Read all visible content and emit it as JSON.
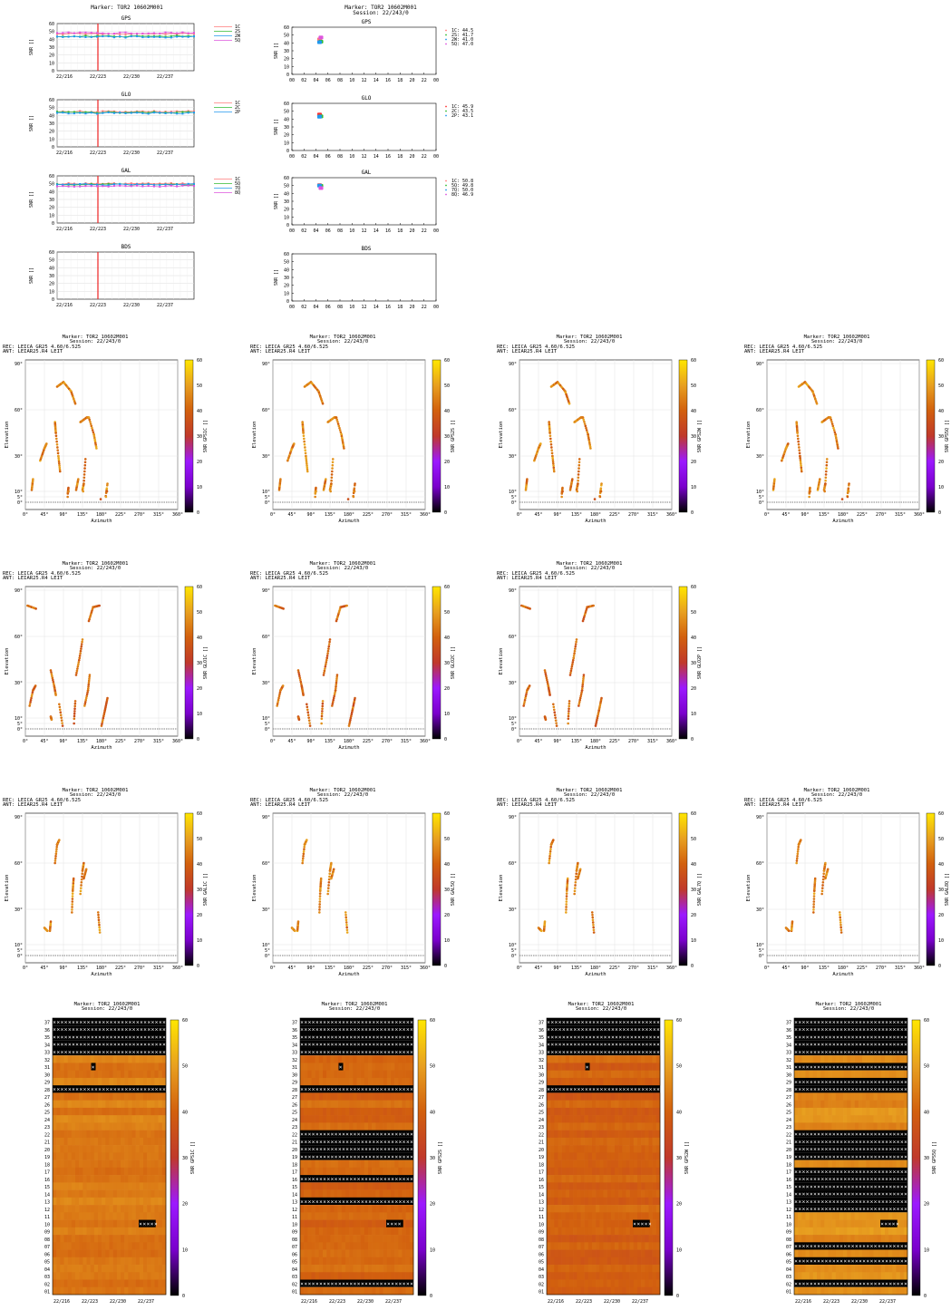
{
  "marker": "Marker: TOR2 10602M001",
  "session": "Session: 22/243/0",
  "receiver": "REC: LEICA GR25          4.60/6.525",
  "antenna": "ANT: LEIAR25.R4       LEIT",
  "colors": {
    "snr_scale": [
      "#000000",
      "#7a00cc",
      "#9c19ff",
      "#c0392b",
      "#d2600e",
      "#e8a020",
      "#ffe600"
    ],
    "cycle_marker": "#ee2222",
    "gap_fill": "#000000"
  },
  "time_series": {
    "ylabel": "SNR []",
    "x_ticks": [
      "22/216",
      "22/223",
      "22/230",
      "22/237"
    ],
    "y_ticks": [
      "0",
      "10",
      "20",
      "30",
      "40",
      "50",
      "60"
    ],
    "ylim": [
      0,
      60
    ],
    "vline_at": "22/223",
    "panels": [
      {
        "title": "GPS",
        "legend": [
          "1C",
          "2S",
          "2W",
          "5Q"
        ],
        "levels": [
          47,
          44,
          43,
          48
        ],
        "colors": [
          "#ff7a7a",
          "#33bb33",
          "#2299ee",
          "#dd55dd"
        ]
      },
      {
        "title": "GLO",
        "legend": [
          "1C",
          "2C",
          "2P"
        ],
        "levels": [
          45,
          44,
          43
        ],
        "colors": [
          "#ff7a7a",
          "#33bb33",
          "#2299ee"
        ]
      },
      {
        "title": "GAL",
        "legend": [
          "1C",
          "5Q",
          "7Q",
          "8Q"
        ],
        "levels": [
          50,
          49,
          49,
          47
        ],
        "colors": [
          "#ff7a7a",
          "#33bb33",
          "#2299ee",
          "#dd55dd"
        ]
      },
      {
        "title": "BDS",
        "legend": [],
        "levels": [],
        "colors": []
      }
    ]
  },
  "daily": {
    "ylabel": "SNR []",
    "x_ticks": [
      "00",
      "02",
      "04",
      "06",
      "08",
      "10",
      "12",
      "14",
      "16",
      "18",
      "20",
      "22",
      "00"
    ],
    "panels": [
      {
        "title": "GPS",
        "legend": [
          "1C: 44.5",
          "2S: 41.7",
          "2W: 41.0",
          "5Q: 47.0"
        ],
        "colors": [
          "#ff7a7a",
          "#33bb33",
          "#2299ee",
          "#dd55dd"
        ],
        "values": [
          44.5,
          41.7,
          41.0,
          47.0
        ]
      },
      {
        "title": "GLO",
        "legend": [
          "1C: 45.9",
          "2C: 43.5",
          "2P: 43.1"
        ],
        "colors": [
          "#ff3333",
          "#33bb33",
          "#2299ee"
        ],
        "values": [
          45.9,
          43.5,
          43.1
        ]
      },
      {
        "title": "GAL",
        "legend": [
          "1C: 50.8",
          "5Q: 49.8",
          "7Q: 50.0",
          "8Q: 46.9"
        ],
        "colors": [
          "#ff7a7a",
          "#33bb33",
          "#2299ee",
          "#dd55dd"
        ],
        "values": [
          50.8,
          49.8,
          50.0,
          46.9
        ]
      },
      {
        "title": "BDS",
        "legend": [],
        "colors": [],
        "values": []
      }
    ]
  },
  "skyplots": {
    "xlabel": "Azimuth",
    "ylabel": "Elevation",
    "x_ticks": [
      "0°",
      "45°",
      "90°",
      "135°",
      "180°",
      "225°",
      "270°",
      "315°",
      "360°"
    ],
    "y_ticks": [
      "0°",
      "5°",
      "10°",
      "30°",
      "60°",
      "90°"
    ],
    "cbar_ticks": [
      "0",
      "10",
      "20",
      "30",
      "40",
      "50",
      "60"
    ],
    "rows": [
      [
        "SNR GPS1C []",
        "SNR GPS2S []",
        "SNR GPS2W []",
        "SNR GPS5Q []"
      ],
      [
        "SNR GLO1C []",
        "SNR GLO2C []",
        "SNR GLO2P []"
      ],
      [
        "SNR GAL1C []",
        "SNR GAL5Q []",
        "SNR GAL7Q []",
        "SNR GAL8Q []"
      ]
    ]
  },
  "heatmaps": {
    "x_ticks": [
      "22/216",
      "22/223",
      "22/230",
      "22/237"
    ],
    "prn_labels": [
      "37",
      "36",
      "35",
      "34",
      "33",
      "32",
      "31",
      "30",
      "29",
      "28",
      "27",
      "26",
      "25",
      "24",
      "23",
      "22",
      "21",
      "20",
      "19",
      "18",
      "17",
      "16",
      "15",
      "14",
      "13",
      "12",
      "11",
      "10",
      "09",
      "08",
      "07",
      "06",
      "05",
      "04",
      "03",
      "02",
      "01"
    ],
    "cbar_ticks": [
      "0",
      "10",
      "20",
      "30",
      "40",
      "50",
      "60"
    ],
    "panels": [
      {
        "label": "SNR GPS1C []",
        "base": 44,
        "gap_rows": [
          "37",
          "36",
          "35",
          "34",
          "33",
          "28"
        ],
        "partial": [
          [
            "31",
            0.34,
            0.38
          ],
          [
            "10",
            0.76,
            0.91
          ]
        ]
      },
      {
        "label": "SNR GPS2S []",
        "base": 41,
        "gap_rows": [
          "37",
          "36",
          "35",
          "34",
          "33",
          "28",
          "22",
          "21",
          "20",
          "19",
          "16",
          "13",
          "02"
        ],
        "partial": [
          [
            "31",
            0.34,
            0.38
          ],
          [
            "10",
            0.76,
            0.91
          ]
        ]
      },
      {
        "label": "SNR GPS2W []",
        "base": 40,
        "gap_rows": [
          "37",
          "36",
          "35",
          "34",
          "33",
          "28"
        ],
        "partial": [
          [
            "31",
            0.34,
            0.38
          ],
          [
            "10",
            0.76,
            0.91
          ]
        ]
      },
      {
        "label": "SNR GPS5Q []",
        "base": 47,
        "gap_rows": [
          "37",
          "36",
          "35",
          "34",
          "33",
          "31",
          "29",
          "28",
          "22",
          "21",
          "20",
          "19",
          "17",
          "16",
          "15",
          "14",
          "13",
          "12",
          "07",
          "05",
          "02"
        ],
        "partial": [
          [
            "10",
            0.76,
            0.91
          ]
        ]
      }
    ]
  }
}
